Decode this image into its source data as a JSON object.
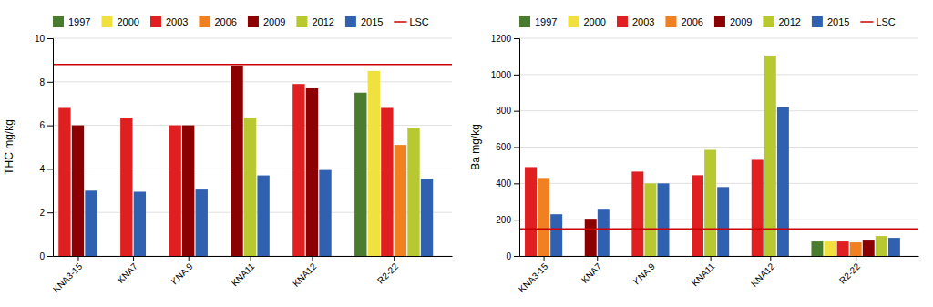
{
  "chart_data": [
    {
      "type": "bar",
      "categories": [
        "KNA3-15",
        "KNA7",
        "KNA 9",
        "KNA11",
        "KNA12",
        "R2-22"
      ],
      "series": [
        {
          "name": "1997",
          "color": "#4a7c2f",
          "values": [
            null,
            null,
            null,
            null,
            null,
            7.5
          ]
        },
        {
          "name": "2000",
          "color": "#f0e040",
          "values": [
            null,
            null,
            null,
            null,
            null,
            8.5
          ]
        },
        {
          "name": "2003",
          "color": "#e02020",
          "values": [
            6.8,
            6.35,
            6.0,
            null,
            7.9,
            6.8
          ]
        },
        {
          "name": "2006",
          "color": "#f08020",
          "values": [
            null,
            null,
            null,
            null,
            null,
            5.1
          ]
        },
        {
          "name": "2009",
          "color": "#8b0000",
          "values": [
            6.0,
            null,
            6.0,
            8.75,
            7.7,
            null
          ]
        },
        {
          "name": "2012",
          "color": "#b8c830",
          "values": [
            null,
            null,
            null,
            6.35,
            null,
            5.9
          ]
        },
        {
          "name": "2015",
          "color": "#3060b0",
          "values": [
            3.0,
            2.95,
            3.05,
            3.7,
            3.95,
            3.55
          ]
        },
        {
          "name": "LSC",
          "type": "hline",
          "color": "#cc0000",
          "value": 8.8
        }
      ],
      "ylabel": "THC mg/kg",
      "ylim": [
        0,
        10
      ],
      "yticks": [
        0,
        2,
        4,
        6,
        8,
        10
      ],
      "grid": true,
      "legend": "upper left"
    },
    {
      "type": "bar",
      "categories": [
        "KNA3-15",
        "KNA7",
        "KNA 9",
        "KNA11",
        "KNA12",
        "R2-22"
      ],
      "series": [
        {
          "name": "1997",
          "color": "#4a7c2f",
          "values": [
            null,
            null,
            null,
            null,
            null,
            80
          ]
        },
        {
          "name": "2000",
          "color": "#f0e040",
          "values": [
            null,
            null,
            null,
            null,
            null,
            80
          ]
        },
        {
          "name": "2003",
          "color": "#e02020",
          "values": [
            490,
            null,
            465,
            445,
            530,
            80
          ]
        },
        {
          "name": "2006",
          "color": "#f08020",
          "values": [
            430,
            null,
            null,
            null,
            null,
            75
          ]
        },
        {
          "name": "2009",
          "color": "#8b0000",
          "values": [
            null,
            205,
            null,
            null,
            null,
            85
          ]
        },
        {
          "name": "2012",
          "color": "#b8c830",
          "values": [
            null,
            null,
            400,
            585,
            1105,
            110
          ]
        },
        {
          "name": "2015",
          "color": "#3060b0",
          "values": [
            230,
            260,
            400,
            380,
            820,
            100
          ]
        },
        {
          "name": "LSC",
          "type": "hline",
          "color": "#cc0000",
          "value": 150
        }
      ],
      "ylabel": "Ba mg/kg",
      "ylim": [
        0,
        1200
      ],
      "yticks": [
        0,
        200,
        400,
        600,
        800,
        1000,
        1200
      ],
      "grid": true,
      "legend": "upper left"
    }
  ]
}
